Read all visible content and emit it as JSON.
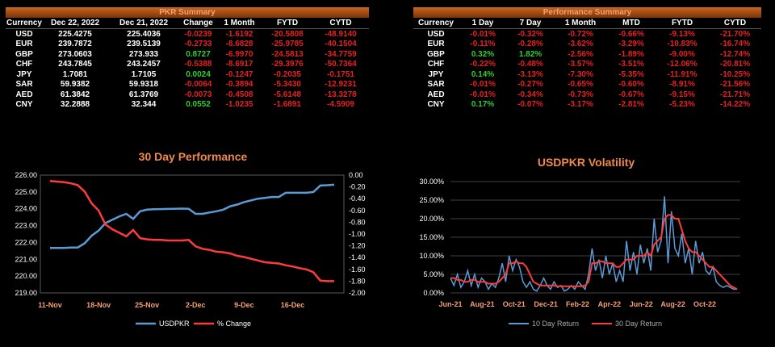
{
  "pkr_summary": {
    "title": "PKR Summary",
    "headers": [
      "Currency",
      "Dec 22, 2022",
      "Dec 21, 2022",
      "Change",
      "1 Month",
      "FYTD",
      "CYTD"
    ],
    "rows": [
      [
        "USD",
        "225.4275",
        "225.4036",
        "-0.0239",
        "-1.6192",
        "-20.5808",
        "-48.9140"
      ],
      [
        "EUR",
        "239.7872",
        "239.5139",
        "-0.2733",
        "-8.6828",
        "-25.9785",
        "-40.1504"
      ],
      [
        "GBP",
        "273.0603",
        "273.933",
        "0.8727",
        "-6.9970",
        "-24.5813",
        "-34.7759"
      ],
      [
        "CHF",
        "243.7845",
        "243.2457",
        "-0.5388",
        "-8.6917",
        "-29.3976",
        "-50.7364"
      ],
      [
        "JPY",
        "1.7081",
        "1.7105",
        "0.0024",
        "-0.1247",
        "-0.2035",
        "-0.1751"
      ],
      [
        "SAR",
        "59.9382",
        "59.9318",
        "-0.0064",
        "-0.3894",
        "-5.3430",
        "-12.9231"
      ],
      [
        "AED",
        "61.3842",
        "61.3769",
        "-0.0073",
        "-0.4508",
        "-5.6148",
        "-13.3278"
      ],
      [
        "CNY",
        "32.2888",
        "32.344",
        "0.0552",
        "-1.0235",
        "-1.6891",
        "-4.5909"
      ]
    ]
  },
  "performance_summary": {
    "title": "Performance Summary",
    "headers": [
      "Currency",
      "1 Day",
      "7 Day",
      "1 Month",
      "MTD",
      "FYTD",
      "CYTD"
    ],
    "rows": [
      [
        "USD",
        "-0.01%",
        "-0.32%",
        "-0.72%",
        "-0.66%",
        "-9.13%",
        "-21.70%"
      ],
      [
        "EUR",
        "-0.11%",
        "-0.28%",
        "-3.62%",
        "-3.29%",
        "-10.83%",
        "-16.74%"
      ],
      [
        "GBP",
        "0.32%",
        "1.82%",
        "-2.56%",
        "-1.89%",
        "-9.00%",
        "-12.74%"
      ],
      [
        "CHF",
        "-0.22%",
        "-0.48%",
        "-3.57%",
        "-3.51%",
        "-12.06%",
        "-20.81%"
      ],
      [
        "JPY",
        "0.14%",
        "-3.13%",
        "-7.30%",
        "-5.35%",
        "-11.91%",
        "-10.25%"
      ],
      [
        "SAR",
        "-0.01%",
        "-0.27%",
        "-0.65%",
        "-0.60%",
        "-8.91%",
        "-21.56%"
      ],
      [
        "AED",
        "-0.01%",
        "-0.34%",
        "-0.73%",
        "-0.67%",
        "-9.15%",
        "-21.71%"
      ],
      [
        "CNY",
        "0.17%",
        "-0.07%",
        "-3.17%",
        "-2.81%",
        "-5.23%",
        "-14.22%"
      ]
    ]
  },
  "colors": {
    "title_orange": "#f08a4b",
    "blue": "#5b9bd5",
    "red": "#ff3b3b",
    "grid": "#595959",
    "axis_text": "#ffffff",
    "xtick_orange": "#f4a070",
    "positive": "#2fcf2f",
    "negative": "#e8201f"
  },
  "chart_data": [
    {
      "type": "line",
      "title": "30 Day Performance",
      "x": [
        "11-Nov",
        "12-Nov",
        "13-Nov",
        "14-Nov",
        "15-Nov",
        "16-Nov",
        "17-Nov",
        "18-Nov",
        "19-Nov",
        "20-Nov",
        "21-Nov",
        "22-Nov",
        "23-Nov",
        "24-Nov",
        "25-Nov",
        "26-Nov",
        "27-Nov",
        "28-Nov",
        "29-Nov",
        "30-Nov",
        "1-Dec",
        "2-Dec",
        "3-Dec",
        "4-Dec",
        "5-Dec",
        "6-Dec",
        "7-Dec",
        "8-Dec",
        "9-Dec",
        "10-Dec",
        "11-Dec",
        "12-Dec",
        "13-Dec",
        "14-Dec",
        "15-Dec",
        "16-Dec",
        "17-Dec",
        "18-Dec",
        "19-Dec",
        "20-Dec",
        "21-Dec",
        "22-Dec"
      ],
      "xticks": [
        "11-Nov",
        "18-Nov",
        "25-Nov",
        "2-Dec",
        "9-Dec",
        "16-Dec"
      ],
      "ylim_left": [
        219.0,
        226.0
      ],
      "yticks_left": [
        "219.00",
        "220.00",
        "221.00",
        "222.00",
        "223.00",
        "224.00",
        "225.00",
        "226.00"
      ],
      "ylim_right": [
        -2.0,
        0.0
      ],
      "yticks_right": [
        "-2.00",
        "-1.80",
        "-1.60",
        "-1.40",
        "-1.20",
        "-1.00",
        "-0.80",
        "-0.60",
        "-0.40",
        "-0.20",
        "0.00"
      ],
      "legend": [
        "USDPKR",
        "% Change"
      ],
      "legend_position": "bottom",
      "series": [
        {
          "name": "USDPKR",
          "axis": "left",
          "values": [
            221.67,
            221.67,
            221.67,
            221.7,
            221.7,
            221.95,
            222.4,
            222.7,
            223.15,
            223.35,
            223.55,
            223.7,
            223.4,
            223.85,
            223.95,
            223.97,
            223.98,
            223.99,
            224.0,
            224.01,
            224.0,
            223.7,
            223.7,
            223.78,
            223.85,
            223.95,
            224.15,
            224.25,
            224.4,
            224.5,
            224.6,
            224.65,
            224.7,
            224.7,
            224.95,
            224.95,
            224.95,
            224.95,
            225.0,
            225.38,
            225.4,
            225.43
          ]
        },
        {
          "name": "% Change",
          "axis": "right",
          "values": [
            -0.1,
            -0.11,
            -0.12,
            -0.14,
            -0.17,
            -0.28,
            -0.48,
            -0.6,
            -0.84,
            -0.92,
            -0.98,
            -1.04,
            -0.93,
            -1.07,
            -1.09,
            -1.1,
            -1.1,
            -1.11,
            -1.11,
            -1.11,
            -1.1,
            -1.21,
            -1.25,
            -1.27,
            -1.3,
            -1.31,
            -1.33,
            -1.37,
            -1.39,
            -1.42,
            -1.45,
            -1.48,
            -1.49,
            -1.5,
            -1.53,
            -1.55,
            -1.58,
            -1.6,
            -1.65,
            -1.79,
            -1.8,
            -1.8
          ]
        }
      ]
    },
    {
      "type": "line",
      "title": "USDPKR Volatility",
      "xticks": [
        "Jun-21",
        "Aug-21",
        "Oct-21",
        "Dec-21",
        "Feb-22",
        "Apr-22",
        "Jun-22",
        "Aug-22",
        "Oct-22"
      ],
      "ylim": [
        0,
        30
      ],
      "yticks": [
        "0.00%",
        "5.00%",
        "10.00%",
        "15.00%",
        "20.00%",
        "25.00%",
        "30.00%"
      ],
      "legend": [
        "10 Day Return",
        "30 Day Return"
      ],
      "legend_position": "bottom",
      "series": [
        {
          "name": "10 Day Return",
          "values": [
            4,
            2,
            5,
            1.5,
            3,
            6,
            2,
            5,
            1.5,
            4,
            3,
            1,
            2.5,
            1.5,
            4,
            8,
            3,
            10,
            6,
            9,
            7,
            3,
            1.5,
            3,
            1,
            0.5,
            2,
            4,
            2,
            1,
            3,
            1.5,
            2,
            0.5,
            1,
            2,
            1,
            3,
            2,
            1,
            5,
            12,
            6,
            9,
            4,
            10,
            5,
            8,
            3,
            6,
            3,
            14,
            6,
            11,
            5,
            13,
            8,
            12,
            6,
            20,
            11,
            14,
            26,
            8,
            22,
            12,
            10,
            16,
            8,
            12,
            5,
            14,
            8,
            11,
            6,
            5,
            7,
            3,
            2,
            1.5,
            2,
            1.5,
            1,
            1
          ]
        },
        {
          "name": "30 Day Return",
          "values": [
            4,
            4,
            3.5,
            3.5,
            3,
            3,
            3.5,
            3.5,
            3,
            3,
            3,
            2.5,
            2.5,
            2.5,
            3,
            4,
            5,
            8,
            8,
            8.5,
            8,
            8,
            7,
            5,
            3,
            2.5,
            2,
            2,
            2,
            2,
            2,
            1.8,
            1.8,
            1.8,
            1.8,
            1.8,
            1.8,
            1.8,
            1.8,
            2,
            3,
            8,
            8,
            8.5,
            8.5,
            8,
            8,
            8,
            7,
            7,
            8,
            9,
            9,
            9,
            10,
            10,
            10,
            11,
            10,
            13,
            14,
            15,
            20,
            21,
            21,
            20,
            20,
            17,
            14,
            12,
            11,
            11,
            10,
            9,
            8,
            7,
            7,
            6,
            5,
            4,
            3,
            2,
            1.5,
            1
          ]
        }
      ]
    }
  ]
}
